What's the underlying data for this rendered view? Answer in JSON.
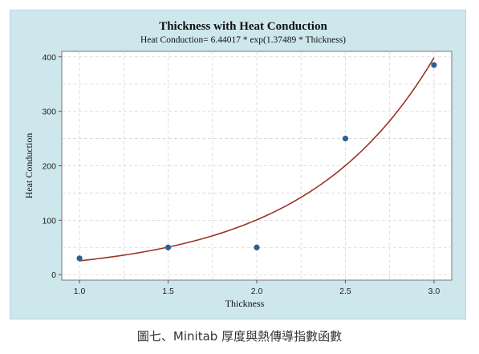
{
  "chart_data": {
    "type": "scatter",
    "title": "Thickness with Heat Conduction",
    "subtitle": "Heat Conduction= 6.44017 * exp(1.37489 * Thickness)",
    "xlabel": "Thickness",
    "ylabel": "Heat Conduction",
    "xlim": [
      0.9,
      3.1
    ],
    "ylim": [
      -10,
      410
    ],
    "xticks": [
      "1.0",
      "1.5",
      "2.0",
      "2.5",
      "3.0"
    ],
    "yticks": [
      "0",
      "100",
      "200",
      "300",
      "400"
    ],
    "grid": true,
    "points": [
      {
        "x": 1.0,
        "y": 30
      },
      {
        "x": 1.5,
        "y": 50
      },
      {
        "x": 2.0,
        "y": 50
      },
      {
        "x": 2.5,
        "y": 250
      },
      {
        "x": 3.0,
        "y": 385
      }
    ],
    "fit": {
      "a": 6.44017,
      "b": 1.37489,
      "x_range": [
        1.0,
        3.0
      ]
    },
    "colors": {
      "points": "#2e5f8f",
      "fit_line": "#9b3324",
      "frame_bg": "#cde7ec",
      "plot_bg": "#ffffff"
    }
  },
  "caption": "圖七、Minitab 厚度與熱傳導指數函數"
}
